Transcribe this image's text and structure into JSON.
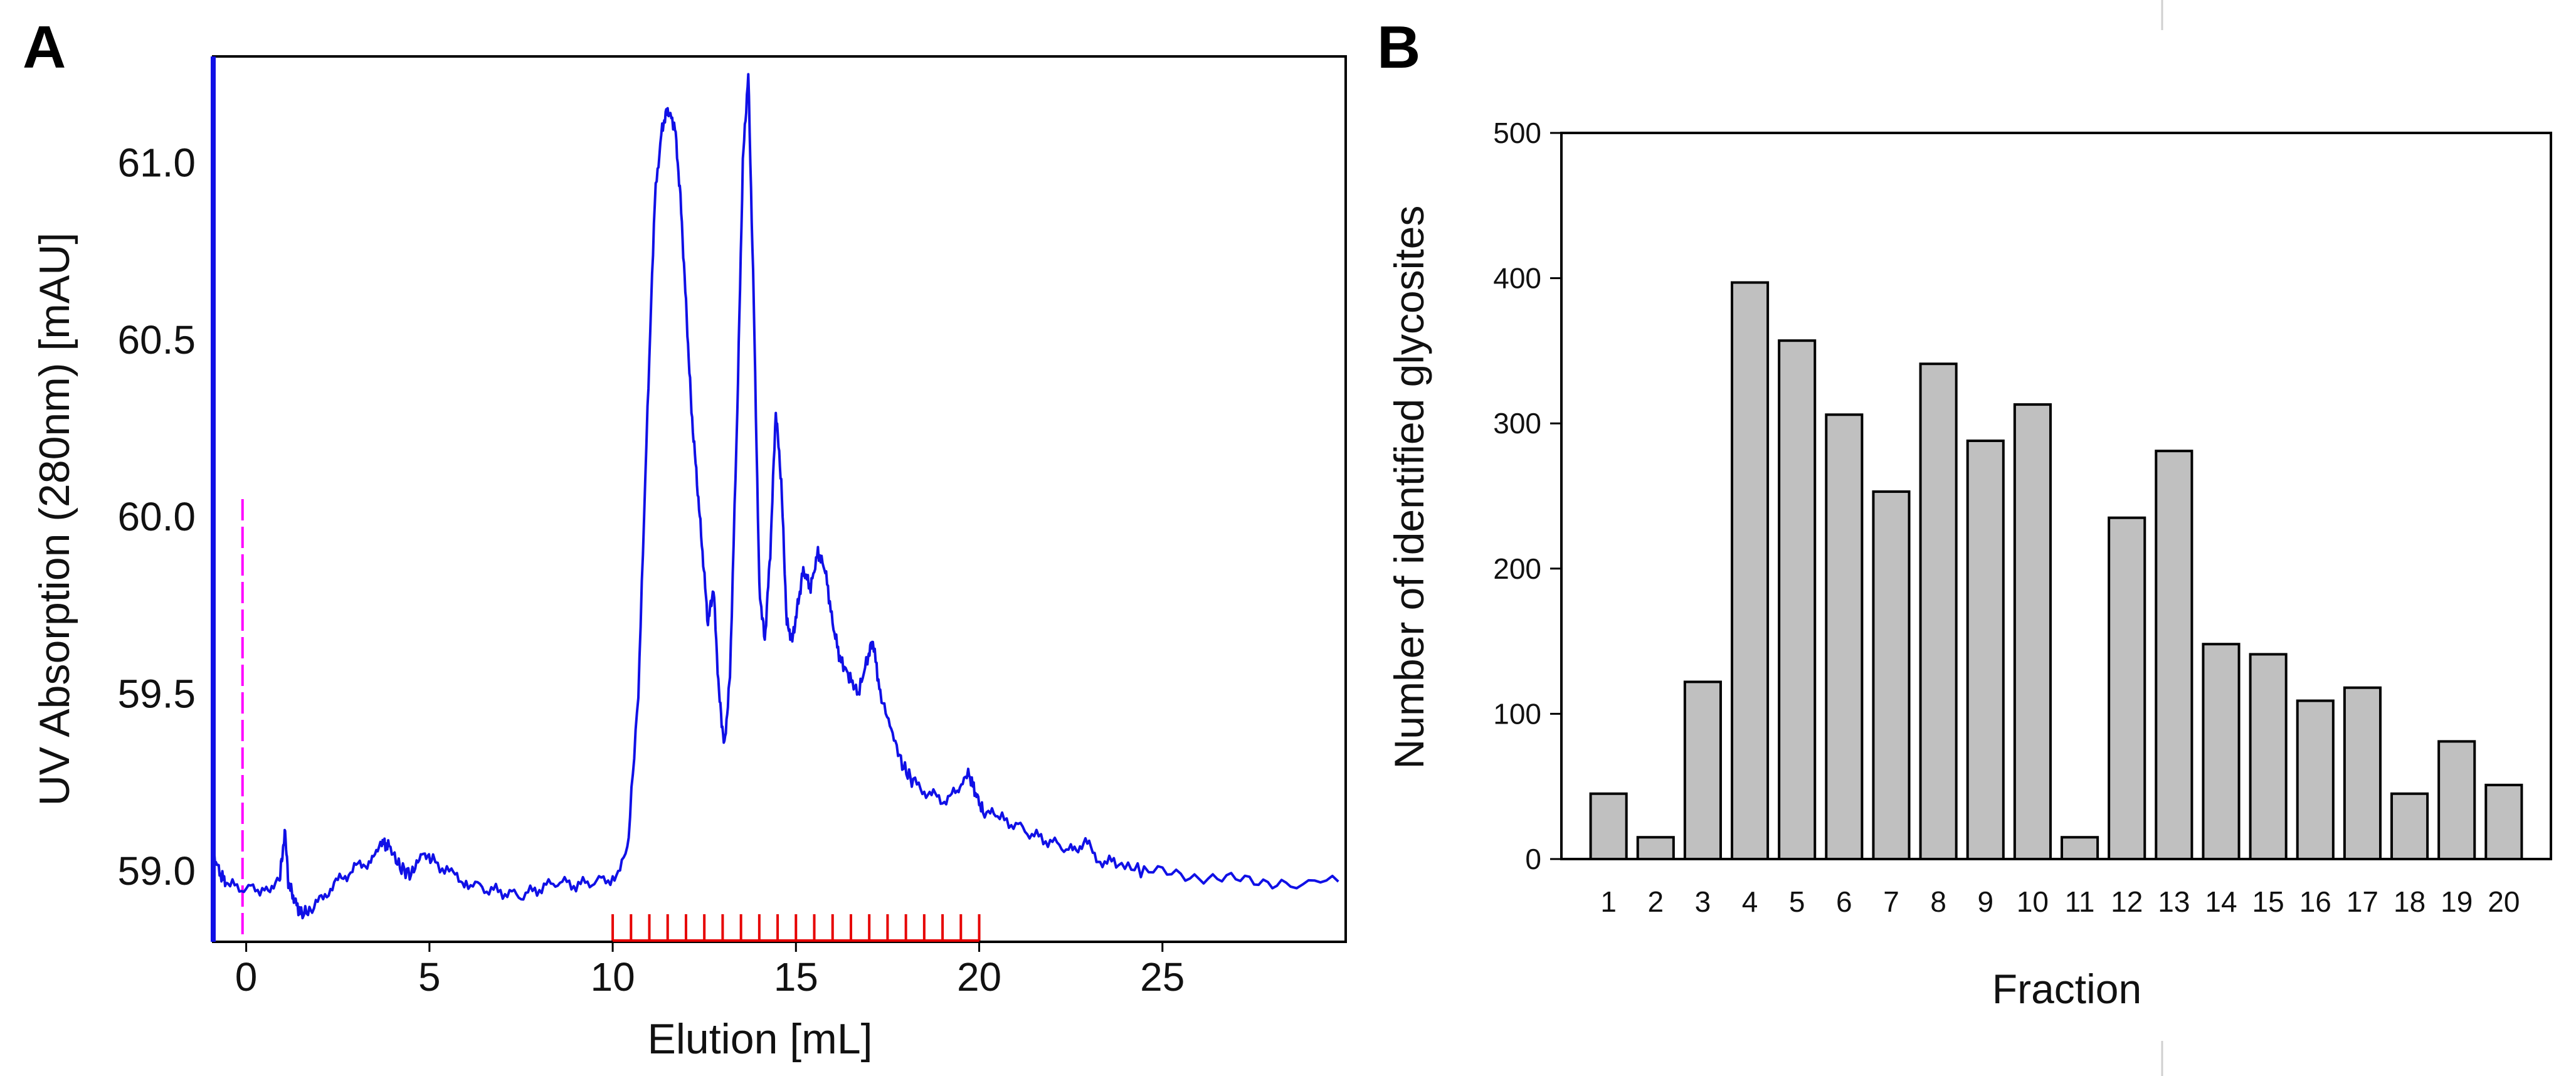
{
  "figure": {
    "panel_a_letter": "A",
    "panel_b_letter": "B"
  },
  "chart_data": [
    {
      "type": "line",
      "panel": "A",
      "title": "",
      "xlabel": "Elution [mL]",
      "ylabel": "UV Absorption (280nm) [mAU]",
      "xlim": [
        -0.9,
        30
      ],
      "ylim": [
        58.8,
        61.3
      ],
      "x_ticks": [
        "0",
        "5",
        "10",
        "15",
        "20",
        "25"
      ],
      "y_ticks": [
        "59.0",
        "59.5",
        "60.0",
        "60.5",
        "61.0"
      ],
      "colors": {
        "trace": "#1010e6",
        "injection_marker": "#ff00ff",
        "fraction_marks": "#e60000"
      },
      "injection_marker_x": -0.1,
      "fraction_marks": {
        "start": 10,
        "end": 20,
        "count": 21
      },
      "series": [
        {
          "name": "UV 280nm",
          "points": [
            [
              -0.9,
              59.05
            ],
            [
              -0.7,
              58.99
            ],
            [
              -0.5,
              58.96
            ],
            [
              0,
              58.95
            ],
            [
              0.5,
              58.95
            ],
            [
              0.9,
              58.97
            ],
            [
              1.0,
              59.05
            ],
            [
              1.05,
              59.12
            ],
            [
              1.15,
              58.97
            ],
            [
              1.3,
              58.92
            ],
            [
              1.5,
              58.88
            ],
            [
              1.8,
              58.89
            ],
            [
              2.2,
              58.94
            ],
            [
              2.6,
              58.98
            ],
            [
              3.0,
              59.01
            ],
            [
              3.4,
              59.03
            ],
            [
              3.7,
              59.08
            ],
            [
              3.9,
              59.07
            ],
            [
              4.2,
              59.01
            ],
            [
              4.5,
              58.99
            ],
            [
              4.8,
              59.05
            ],
            [
              5.1,
              59.03
            ],
            [
              5.6,
              58.99
            ],
            [
              6.0,
              58.97
            ],
            [
              6.5,
              58.95
            ],
            [
              7.0,
              58.94
            ],
            [
              7.5,
              58.93
            ],
            [
              8.0,
              58.95
            ],
            [
              8.5,
              58.97
            ],
            [
              9.0,
              58.96
            ],
            [
              9.5,
              58.97
            ],
            [
              10.0,
              58.98
            ],
            [
              10.4,
              59.05
            ],
            [
              10.7,
              59.5
            ],
            [
              10.95,
              60.3
            ],
            [
              11.15,
              60.9
            ],
            [
              11.35,
              61.1
            ],
            [
              11.5,
              61.15
            ],
            [
              11.7,
              61.1
            ],
            [
              11.85,
              60.9
            ],
            [
              12.0,
              60.6
            ],
            [
              12.15,
              60.3
            ],
            [
              12.3,
              60.1
            ],
            [
              12.45,
              59.9
            ],
            [
              12.6,
              59.7
            ],
            [
              12.75,
              59.8
            ],
            [
              12.9,
              59.5
            ],
            [
              13.05,
              59.35
            ],
            [
              13.2,
              59.55
            ],
            [
              13.4,
              60.3
            ],
            [
              13.55,
              61.0
            ],
            [
              13.7,
              61.25
            ],
            [
              13.85,
              60.6
            ],
            [
              14.0,
              59.8
            ],
            [
              14.15,
              59.65
            ],
            [
              14.3,
              59.9
            ],
            [
              14.45,
              60.3
            ],
            [
              14.6,
              60.1
            ],
            [
              14.75,
              59.7
            ],
            [
              14.9,
              59.65
            ],
            [
              15.05,
              59.75
            ],
            [
              15.2,
              59.85
            ],
            [
              15.4,
              59.8
            ],
            [
              15.6,
              59.9
            ],
            [
              15.8,
              59.85
            ],
            [
              16.0,
              59.7
            ],
            [
              16.2,
              59.6
            ],
            [
              16.45,
              59.55
            ],
            [
              16.7,
              59.5
            ],
            [
              16.95,
              59.6
            ],
            [
              17.1,
              59.65
            ],
            [
              17.3,
              59.5
            ],
            [
              17.6,
              59.4
            ],
            [
              17.9,
              59.3
            ],
            [
              18.2,
              59.25
            ],
            [
              18.6,
              59.22
            ],
            [
              19.0,
              59.2
            ],
            [
              19.4,
              59.22
            ],
            [
              19.7,
              59.28
            ],
            [
              19.9,
              59.22
            ],
            [
              20.1,
              59.17
            ],
            [
              20.5,
              59.15
            ],
            [
              21.0,
              59.13
            ],
            [
              21.5,
              59.1
            ],
            [
              22.0,
              59.08
            ],
            [
              22.5,
              59.06
            ],
            [
              22.9,
              59.08
            ],
            [
              23.3,
              59.03
            ],
            [
              23.8,
              59.02
            ],
            [
              24.5,
              59.0
            ],
            [
              25.5,
              58.99
            ],
            [
              26.5,
              58.98
            ],
            [
              27.5,
              58.97
            ],
            [
              28.5,
              58.97
            ],
            [
              29.8,
              58.97
            ]
          ]
        }
      ]
    },
    {
      "type": "bar",
      "panel": "B",
      "title": "",
      "xlabel": "Fraction",
      "ylabel": "Number of identified glycosites",
      "ylim": [
        0,
        500
      ],
      "y_ticks": [
        "0",
        "100",
        "200",
        "300",
        "400",
        "500"
      ],
      "colors": {
        "bar_fill": "#c0c0c0",
        "bar_stroke": "#000000"
      },
      "categories": [
        "1",
        "2",
        "3",
        "4",
        "5",
        "6",
        "7",
        "8",
        "9",
        "10",
        "11",
        "12",
        "13",
        "14",
        "15",
        "16",
        "17",
        "18",
        "19",
        "20"
      ],
      "values": [
        45,
        15,
        122,
        397,
        357,
        306,
        253,
        341,
        288,
        313,
        15,
        235,
        281,
        148,
        141,
        109,
        118,
        45,
        81,
        51
      ]
    }
  ]
}
